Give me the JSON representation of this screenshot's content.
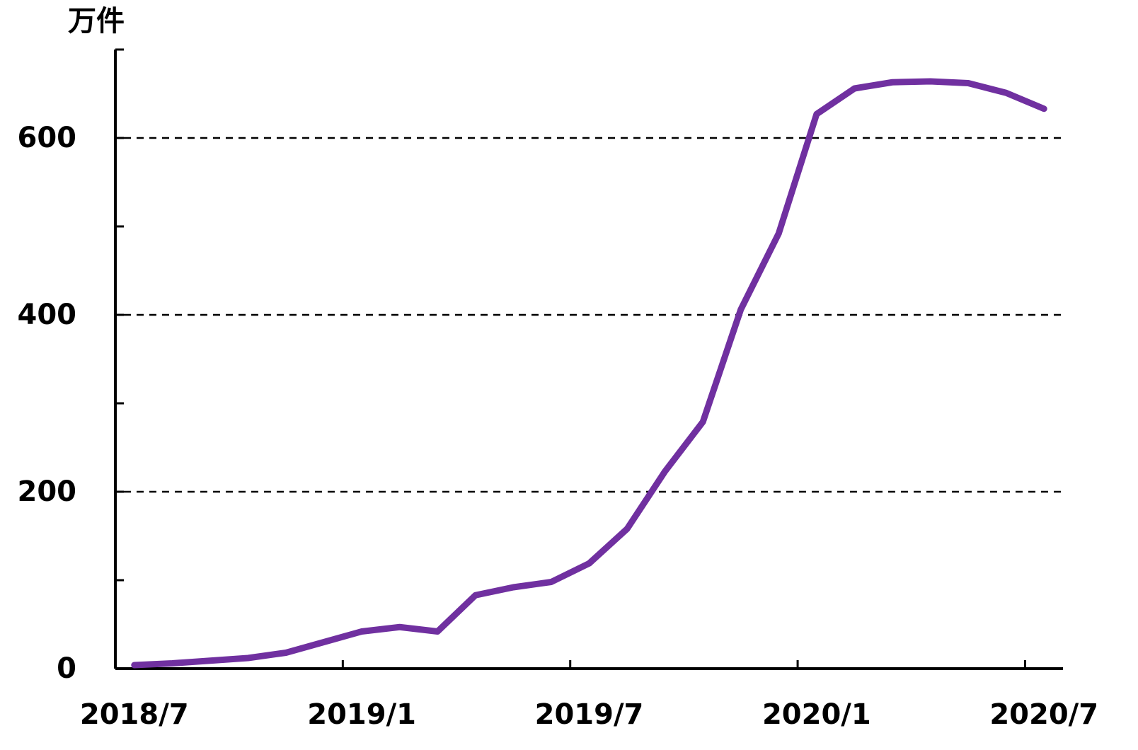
{
  "chart_data": {
    "type": "line",
    "y_unit": "万件",
    "categories": [
      "2018/7",
      null,
      null,
      null,
      null,
      null,
      "2019/1",
      null,
      null,
      null,
      null,
      null,
      "2019/7",
      null,
      null,
      null,
      null,
      null,
      "2020/1",
      null,
      null,
      null,
      null,
      null,
      "2020/7"
    ],
    "series": [
      {
        "color": "#7030a0",
        "values": [
          4,
          6,
          9,
          12,
          18,
          30,
          42,
          47,
          42,
          83,
          92,
          98,
          119,
          158,
          223,
          279,
          406,
          492,
          627,
          656,
          663,
          664,
          662,
          651,
          633
        ]
      }
    ],
    "ylim": [
      0,
      700
    ],
    "yticks": [
      0,
      200,
      400,
      600
    ],
    "yminor_ticks": [
      100,
      300,
      500,
      700
    ],
    "grid": true
  }
}
